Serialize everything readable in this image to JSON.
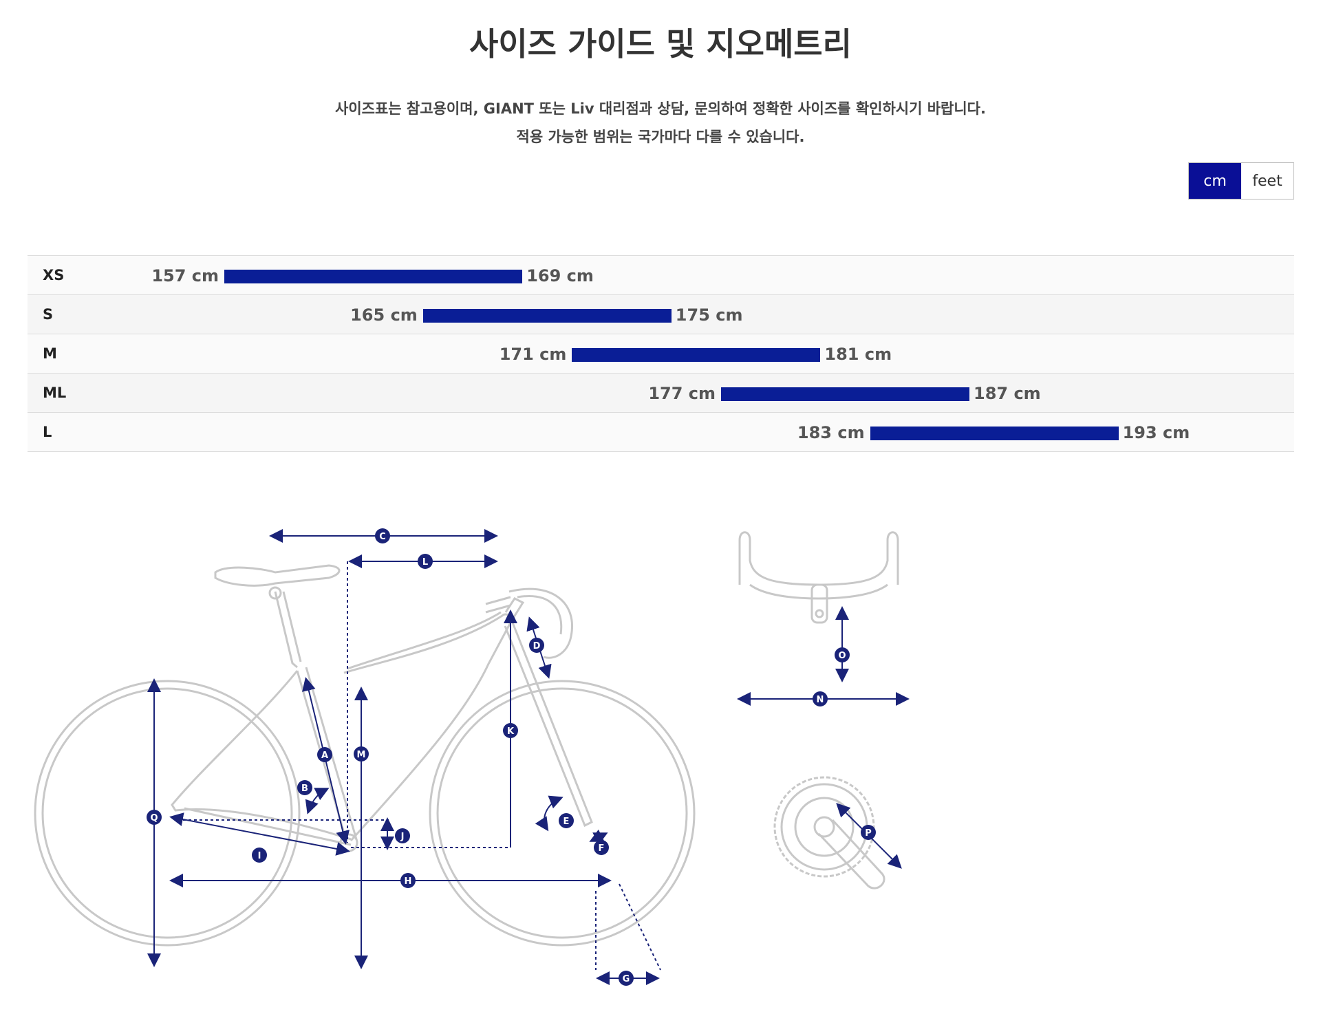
{
  "header": {
    "title": "사이즈 가이드 및 지오메트리",
    "note_line1": "사이즈표는 참고용이며, GIANT 또는 Liv 대리점과 상담, 문의하여 정확한 사이즈를 확인하시기 바랍니다.",
    "note_line2": "적용 가능한 범위는 국가마다 다를 수 있습니다."
  },
  "unit_toggle": {
    "options": [
      "cm",
      "feet"
    ],
    "selected": "cm",
    "active_color": "#0a0f96"
  },
  "size_chart": {
    "bar_color": "#0a1e96",
    "scale_min_cm": 150,
    "scale_max_cm": 200,
    "rows": [
      {
        "size": "XS",
        "min": 157,
        "max": 169,
        "min_label": "157 cm",
        "max_label": "169 cm"
      },
      {
        "size": "S",
        "min": 165,
        "max": 175,
        "min_label": "165 cm",
        "max_label": "175 cm"
      },
      {
        "size": "M",
        "min": 171,
        "max": 181,
        "min_label": "171 cm",
        "max_label": "181 cm"
      },
      {
        "size": "ML",
        "min": 177,
        "max": 187,
        "min_label": "177 cm",
        "max_label": "187 cm"
      },
      {
        "size": "L",
        "min": 183,
        "max": 193,
        "min_label": "183 cm",
        "max_label": "193 cm"
      }
    ]
  },
  "geometry": {
    "diagram_color": "#1a2378",
    "frame_color": "#c8c8c8",
    "markers": [
      "A",
      "B",
      "C",
      "D",
      "E",
      "F",
      "G",
      "H",
      "I",
      "J",
      "K",
      "L",
      "M",
      "N",
      "O",
      "P",
      "Q"
    ]
  }
}
